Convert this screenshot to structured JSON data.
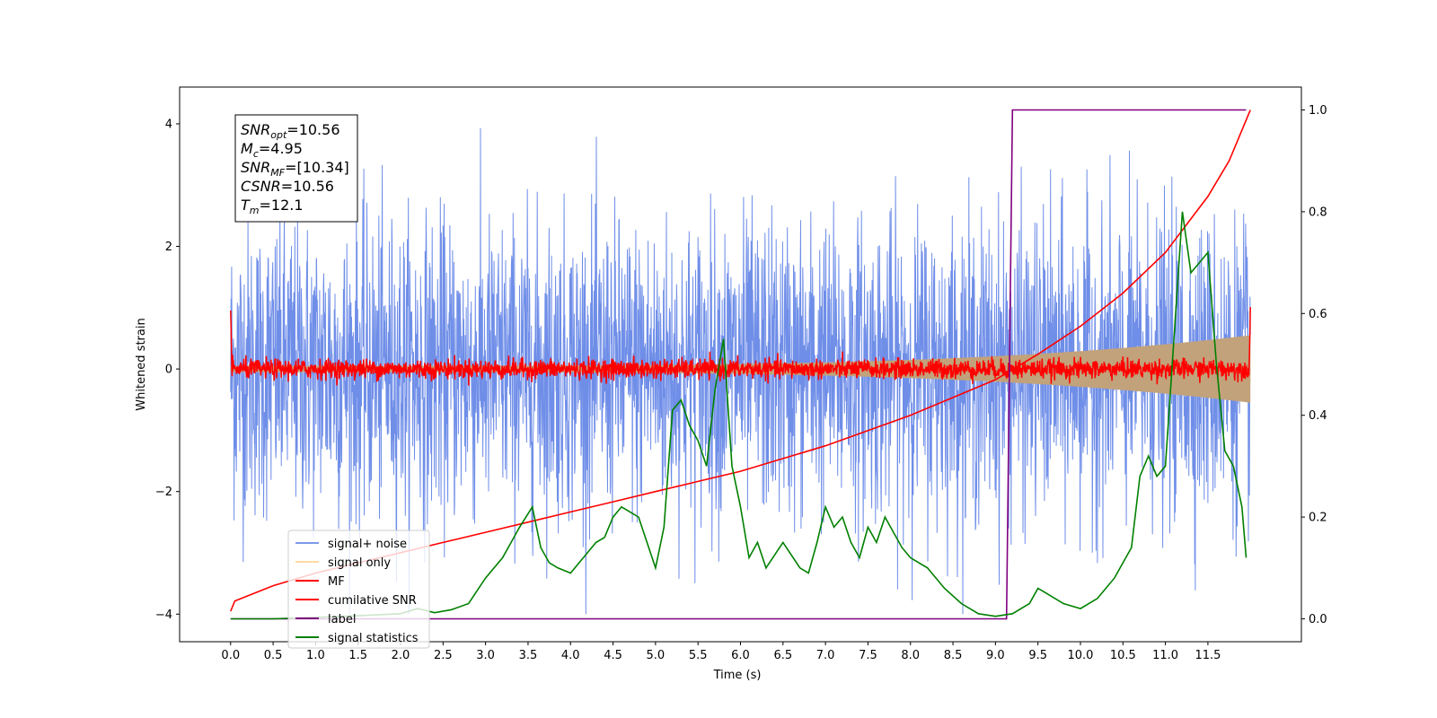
{
  "chart_data": {
    "type": "line",
    "title": "",
    "xlabel": "Time (s)",
    "ylabel": "Whitened strain",
    "xlim": [
      -0.6,
      12.6
    ],
    "ylim": [
      -4.45,
      4.6
    ],
    "y2lim": [
      -0.045,
      1.045
    ],
    "xticks": [
      "0.0",
      "0.5",
      "1.0",
      "1.5",
      "2.0",
      "2.5",
      "3.0",
      "3.5",
      "4.0",
      "4.5",
      "5.0",
      "5.5",
      "6.0",
      "6.5",
      "7.0",
      "7.5",
      "8.0",
      "8.5",
      "9.0",
      "9.5",
      "10.0",
      "10.5",
      "11.0",
      "11.5"
    ],
    "yticks": [
      "−4",
      "−2",
      "0",
      "2",
      "4"
    ],
    "y2ticks": [
      "0.0",
      "0.2",
      "0.4",
      "0.6",
      "0.8",
      "1.0"
    ],
    "grid": false,
    "legend_position": "lower-left",
    "annotation": {
      "lines": [
        {
          "sym": "SNR",
          "sub": "opt",
          "value": "=10.56"
        },
        {
          "sym": "M",
          "sub": "c",
          "value": "=4.95"
        },
        {
          "sym": "SNR",
          "sub": "MF",
          "value": "=[10.34]"
        },
        {
          "sym": "CSNR",
          "sub": "",
          "value": "=10.56"
        },
        {
          "sym": "T",
          "sub": "m",
          "value": "=12.1"
        }
      ]
    },
    "series": [
      {
        "name": "signal+ noise",
        "axis": "left",
        "kind": "noise",
        "color": "#6f8ee8",
        "t_start": 0.0,
        "t_end": 12.0,
        "sigma": 1.2,
        "spike_max": 4.1,
        "spike_min": -4.0
      },
      {
        "name": "signal only",
        "axis": "left",
        "kind": "chirp",
        "color": "#ffc060",
        "t_start": 0.0,
        "t_end": 12.0,
        "amp_start": 0.05,
        "amp_end": 0.55
      },
      {
        "name": "MF",
        "axis": "left",
        "kind": "mf",
        "color": "#ff0000",
        "t_start": 0.0,
        "t_end": 12.0,
        "start_value": 1.0,
        "end_value": 1.0,
        "sigma": 0.08
      },
      {
        "name": "cumilative SNR",
        "axis": "right",
        "color": "#ff0000",
        "x": [
          0.0,
          0.05,
          0.5,
          1.0,
          1.5,
          2.0,
          2.5,
          3.0,
          3.5,
          4.0,
          4.5,
          5.0,
          5.5,
          6.0,
          6.5,
          7.0,
          7.5,
          8.0,
          8.5,
          9.0,
          9.5,
          10.0,
          10.5,
          11.0,
          11.5,
          11.75,
          12.0
        ],
        "y": [
          0.015,
          0.035,
          0.065,
          0.09,
          0.11,
          0.13,
          0.15,
          0.17,
          0.19,
          0.21,
          0.23,
          0.25,
          0.27,
          0.29,
          0.315,
          0.34,
          0.37,
          0.4,
          0.435,
          0.47,
          0.52,
          0.575,
          0.64,
          0.72,
          0.83,
          0.9,
          1.0
        ]
      },
      {
        "name": "label",
        "axis": "right",
        "color": "#800080",
        "x": [
          0.0,
          9.13,
          9.2,
          11.95
        ],
        "y": [
          0.0,
          0.0,
          1.0,
          1.0
        ]
      },
      {
        "name": "signal statistics",
        "axis": "right",
        "color": "#008000",
        "x": [
          0.0,
          0.5,
          1.0,
          1.5,
          2.0,
          2.2,
          2.4,
          2.6,
          2.8,
          3.0,
          3.2,
          3.4,
          3.55,
          3.65,
          3.75,
          3.85,
          4.0,
          4.15,
          4.3,
          4.4,
          4.5,
          4.6,
          4.7,
          4.8,
          4.9,
          5.0,
          5.1,
          5.2,
          5.3,
          5.4,
          5.5,
          5.6,
          5.7,
          5.8,
          5.9,
          6.0,
          6.1,
          6.2,
          6.3,
          6.5,
          6.7,
          6.8,
          6.9,
          7.0,
          7.1,
          7.2,
          7.3,
          7.4,
          7.5,
          7.6,
          7.7,
          7.8,
          7.9,
          8.0,
          8.2,
          8.4,
          8.6,
          8.8,
          9.0,
          9.2,
          9.4,
          9.5,
          9.6,
          9.8,
          10.0,
          10.2,
          10.4,
          10.6,
          10.7,
          10.8,
          10.9,
          11.0,
          11.1,
          11.2,
          11.3,
          11.4,
          11.5,
          11.6,
          11.7,
          11.8,
          11.9,
          11.95
        ],
        "y": [
          0.0,
          0.0,
          0.003,
          0.006,
          0.01,
          0.02,
          0.012,
          0.018,
          0.03,
          0.08,
          0.12,
          0.18,
          0.22,
          0.14,
          0.11,
          0.1,
          0.09,
          0.12,
          0.15,
          0.16,
          0.2,
          0.22,
          0.21,
          0.2,
          0.15,
          0.1,
          0.18,
          0.41,
          0.43,
          0.38,
          0.35,
          0.3,
          0.45,
          0.55,
          0.3,
          0.22,
          0.12,
          0.15,
          0.1,
          0.15,
          0.1,
          0.09,
          0.15,
          0.22,
          0.18,
          0.2,
          0.15,
          0.12,
          0.18,
          0.15,
          0.2,
          0.17,
          0.14,
          0.12,
          0.1,
          0.06,
          0.03,
          0.01,
          0.005,
          0.01,
          0.03,
          0.06,
          0.05,
          0.03,
          0.02,
          0.04,
          0.08,
          0.14,
          0.28,
          0.32,
          0.28,
          0.3,
          0.55,
          0.8,
          0.68,
          0.7,
          0.72,
          0.5,
          0.33,
          0.3,
          0.22,
          0.12
        ]
      }
    ]
  }
}
